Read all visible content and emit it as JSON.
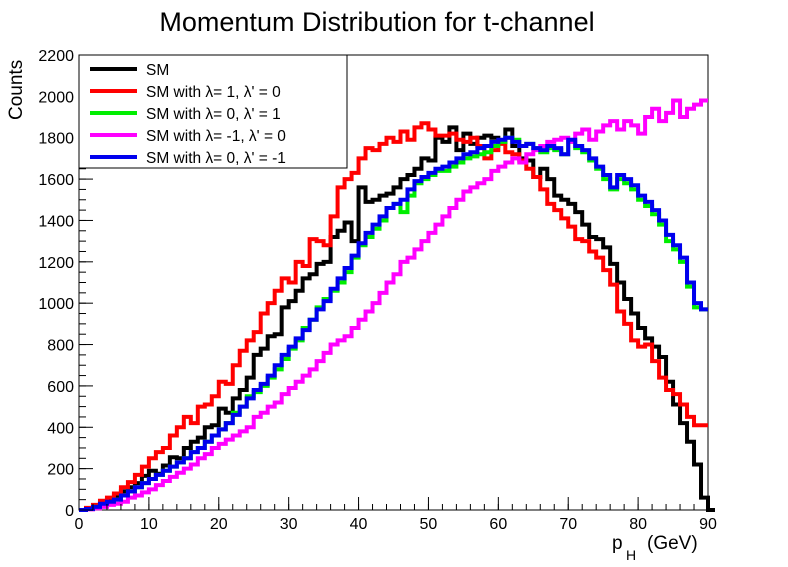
{
  "chart_data": {
    "type": "line",
    "title": "Momentum Distribution for t-channel",
    "xlabel": "p",
    "xlabel_sub": "H",
    "xlabel_unit": "(GeV)",
    "ylabel": "Counts",
    "xlim": [
      0,
      90
    ],
    "ylim": [
      0,
      2200
    ],
    "xticks": [
      0,
      10,
      20,
      30,
      40,
      50,
      60,
      70,
      80,
      90
    ],
    "yticks": [
      0,
      200,
      400,
      600,
      800,
      1000,
      1200,
      1400,
      1600,
      1800,
      2000,
      2200
    ],
    "legend_position": "top-left",
    "bin_width": 1,
    "series": [
      {
        "name": "SM",
        "color": "#000000",
        "values": [
          0,
          5,
          15,
          30,
          50,
          70,
          90,
          110,
          130,
          165,
          190,
          175,
          215,
          255,
          250,
          300,
          330,
          350,
          400,
          410,
          490,
          470,
          540,
          580,
          640,
          750,
          780,
          840,
          850,
          980,
          1010,
          1060,
          1120,
          1140,
          1190,
          1200,
          1320,
          1350,
          1390,
          1300,
          1560,
          1490,
          1500,
          1520,
          1530,
          1560,
          1600,
          1620,
          1650,
          1700,
          1690,
          1800,
          1780,
          1850,
          1740,
          1820,
          1770,
          1800,
          1810,
          1800,
          1780,
          1840,
          1760,
          1700,
          1690,
          1610,
          1650,
          1600,
          1520,
          1500,
          1480,
          1440,
          1380,
          1320,
          1310,
          1270,
          1190,
          1100,
          1020,
          950,
          880,
          830,
          790,
          740,
          620,
          510,
          420,
          330,
          220,
          60,
          0
        ]
      },
      {
        "name": "SM with λ= 1, λ' = 0",
        "color": "#ff0000",
        "values": [
          0,
          10,
          25,
          45,
          60,
          80,
          110,
          135,
          170,
          210,
          250,
          280,
          300,
          360,
          400,
          450,
          420,
          500,
          510,
          550,
          620,
          610,
          700,
          770,
          820,
          860,
          950,
          1000,
          1060,
          1120,
          1100,
          1200,
          1180,
          1310,
          1300,
          1280,
          1420,
          1560,
          1600,
          1630,
          1700,
          1750,
          1740,
          1770,
          1800,
          1780,
          1830,
          1790,
          1850,
          1870,
          1840,
          1810,
          1810,
          1820,
          1790,
          1780,
          1800,
          1760,
          1700,
          1740,
          1770,
          1730,
          1720,
          1690,
          1650,
          1610,
          1550,
          1480,
          1450,
          1410,
          1370,
          1310,
          1300,
          1250,
          1220,
          1160,
          1090,
          960,
          900,
          820,
          790,
          800,
          720,
          640,
          580,
          560,
          510,
          450,
          410,
          410
        ]
      },
      {
        "name": "SM with λ= 0, λ' = 1",
        "color": "#00ee00",
        "values": [
          0,
          5,
          15,
          25,
          35,
          50,
          70,
          90,
          110,
          130,
          150,
          170,
          190,
          210,
          230,
          250,
          280,
          300,
          330,
          360,
          390,
          420,
          470,
          500,
          550,
          570,
          600,
          640,
          680,
          730,
          780,
          820,
          880,
          920,
          980,
          1020,
          1060,
          1100,
          1150,
          1220,
          1280,
          1320,
          1360,
          1400,
          1460,
          1480,
          1440,
          1520,
          1580,
          1600,
          1620,
          1640,
          1640,
          1660,
          1680,
          1700,
          1710,
          1720,
          1730,
          1760,
          1780,
          1800,
          1790,
          1760,
          1770,
          1750,
          1730,
          1750,
          1740,
          1720,
          1780,
          1750,
          1730,
          1690,
          1650,
          1600,
          1550,
          1600,
          1580,
          1550,
          1500,
          1470,
          1430,
          1380,
          1300,
          1260,
          1200,
          1080,
          980,
          970
        ]
      },
      {
        "name": "SM with λ= -1, λ' = 0",
        "color": "#ff00ff",
        "values": [
          0,
          3,
          8,
          15,
          25,
          30,
          40,
          60,
          70,
          85,
          100,
          120,
          140,
          160,
          180,
          200,
          220,
          250,
          270,
          300,
          320,
          340,
          360,
          380,
          400,
          450,
          470,
          500,
          520,
          560,
          590,
          620,
          650,
          680,
          720,
          760,
          800,
          820,
          840,
          880,
          920,
          960,
          1000,
          1050,
          1100,
          1140,
          1200,
          1220,
          1260,
          1300,
          1340,
          1380,
          1420,
          1460,
          1500,
          1540,
          1560,
          1580,
          1600,
          1640,
          1660,
          1680,
          1700,
          1680,
          1720,
          1740,
          1760,
          1780,
          1790,
          1800,
          1780,
          1820,
          1840,
          1790,
          1830,
          1860,
          1880,
          1840,
          1880,
          1860,
          1820,
          1900,
          1940,
          1880,
          1920,
          1980,
          1900,
          1940,
          1960,
          1980
        ]
      },
      {
        "name": "SM with λ= 0, λ' = -1",
        "color": "#0000ee",
        "values": [
          0,
          5,
          15,
          30,
          40,
          50,
          70,
          90,
          110,
          130,
          150,
          170,
          190,
          210,
          230,
          250,
          280,
          300,
          330,
          360,
          390,
          420,
          460,
          500,
          540,
          580,
          610,
          650,
          700,
          750,
          790,
          830,
          870,
          920,
          970,
          1010,
          1070,
          1120,
          1170,
          1230,
          1290,
          1340,
          1380,
          1420,
          1460,
          1480,
          1500,
          1550,
          1590,
          1610,
          1630,
          1650,
          1660,
          1680,
          1700,
          1720,
          1730,
          1750,
          1760,
          1780,
          1790,
          1800,
          1780,
          1760,
          1770,
          1750,
          1740,
          1760,
          1750,
          1720,
          1790,
          1760,
          1740,
          1700,
          1660,
          1620,
          1560,
          1620,
          1600,
          1570,
          1520,
          1490,
          1450,
          1400,
          1330,
          1280,
          1220,
          1100,
          1000,
          970
        ]
      }
    ]
  }
}
